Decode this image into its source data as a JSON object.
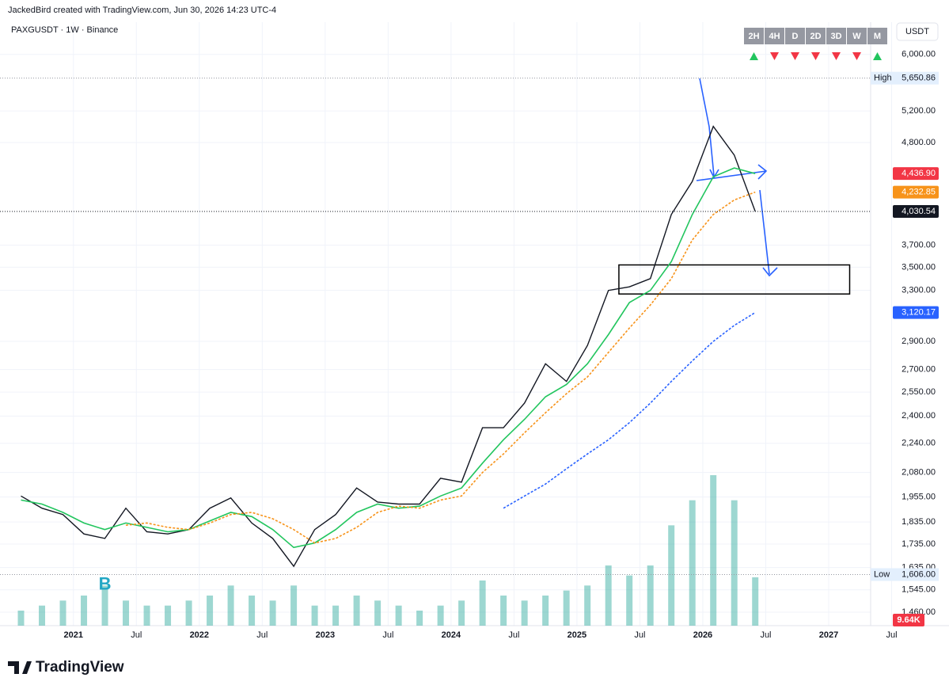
{
  "header": "JackedBird created with TradingView.com, Jun 30, 2026 14:23 UTC-4",
  "footer": "TradingView",
  "chart_data": {
    "type": "line",
    "symbol": "PAXGUSDT · 1W · Binance",
    "currency": "USDT",
    "log_scale": true,
    "x": [
      "2020-08",
      "2020-10",
      "2020-12",
      "2021-02",
      "2021-04",
      "2021-06",
      "2021-08",
      "2021-10",
      "2021-12",
      "2022-02",
      "2022-04",
      "2022-06",
      "2022-08",
      "2022-10",
      "2022-12",
      "2023-02",
      "2023-04",
      "2023-06",
      "2023-08",
      "2023-10",
      "2023-12",
      "2024-02",
      "2024-04",
      "2024-06",
      "2024-08",
      "2024-10",
      "2024-12",
      "2025-02",
      "2025-04",
      "2025-06",
      "2025-08",
      "2025-10",
      "2025-12",
      "2026-02",
      "2026-04",
      "2026-06"
    ],
    "series": [
      {
        "color": "#131722",
        "values": [
          1960,
          1900,
          1870,
          1780,
          1760,
          1900,
          1790,
          1780,
          1800,
          1900,
          1950,
          1830,
          1760,
          1640,
          1800,
          1870,
          2000,
          1930,
          1920,
          1920,
          2050,
          2030,
          2330,
          2330,
          2480,
          2740,
          2620,
          2870,
          3300,
          3330,
          3400,
          4000,
          4350,
          5000,
          4650,
          4030.54
        ]
      },
      {
        "color": "#22c55e",
        "values": [
          1940,
          1920,
          1880,
          1830,
          1800,
          1830,
          1810,
          1790,
          1800,
          1840,
          1880,
          1860,
          1800,
          1720,
          1740,
          1800,
          1880,
          1920,
          1900,
          1910,
          1960,
          2000,
          2130,
          2260,
          2380,
          2520,
          2600,
          2740,
          2950,
          3200,
          3300,
          3550,
          4000,
          4400,
          4500,
          4436.9
        ]
      },
      {
        "color": "#f7931a",
        "dashed": true,
        "values": [
          null,
          null,
          null,
          null,
          null,
          1820,
          1830,
          1810,
          1800,
          1830,
          1870,
          1880,
          1850,
          1800,
          1740,
          1760,
          1810,
          1880,
          1910,
          1900,
          1940,
          1960,
          2080,
          2180,
          2300,
          2420,
          2540,
          2650,
          2820,
          3000,
          3180,
          3400,
          3750,
          4000,
          4150,
          4232.85
        ]
      },
      {
        "color": "#2962ff",
        "dashed": true,
        "values": [
          null,
          null,
          null,
          null,
          null,
          null,
          null,
          null,
          null,
          null,
          null,
          null,
          null,
          null,
          null,
          null,
          null,
          null,
          null,
          null,
          null,
          null,
          null,
          1900,
          1960,
          2020,
          2100,
          2180,
          2260,
          2360,
          2480,
          2620,
          2760,
          2900,
          3020,
          3120.17
        ]
      }
    ],
    "volume": {
      "color": "#26a69a",
      "values": [
        3,
        4,
        5,
        6,
        8,
        5,
        4,
        4,
        5,
        6,
        8,
        6,
        5,
        8,
        4,
        4,
        6,
        5,
        4,
        3,
        4,
        5,
        9,
        6,
        5,
        6,
        7,
        8,
        12,
        10,
        12,
        20,
        25,
        30,
        25,
        9.64
      ],
      "label": "9.64K"
    },
    "xlim": [
      "2020-06",
      "2027-05"
    ],
    "xticks": [
      {
        "value": "2021-01",
        "label": "2021"
      },
      {
        "value": "2021-07",
        "label": "Jul"
      },
      {
        "value": "2022-01",
        "label": "2022"
      },
      {
        "value": "2022-07",
        "label": "Jul"
      },
      {
        "value": "2023-01",
        "label": "2023"
      },
      {
        "value": "2023-07",
        "label": "Jul"
      },
      {
        "value": "2024-01",
        "label": "2024"
      },
      {
        "value": "2024-07",
        "label": "Jul"
      },
      {
        "value": "2025-01",
        "label": "2025"
      },
      {
        "value": "2025-07",
        "label": "Jul"
      },
      {
        "value": "2026-01",
        "label": "2026"
      },
      {
        "value": "2026-07",
        "label": "Jul"
      },
      {
        "value": "2027-01",
        "label": "2027"
      },
      {
        "value": "2027-07",
        "label": "Jul"
      }
    ],
    "ylim": [
      1411,
      6512
    ],
    "yticks": [
      {
        "value": 6000,
        "label": "6,000.00"
      },
      {
        "value": 5200,
        "label": "5,200.00"
      },
      {
        "value": 4800,
        "label": "4,800.00"
      },
      {
        "value": 3700,
        "label": "3,700.00"
      },
      {
        "value": 3500,
        "label": "3,500.00"
      },
      {
        "value": 3300,
        "label": "3,300.00"
      },
      {
        "value": 2900,
        "label": "2,900.00"
      },
      {
        "value": 2700,
        "label": "2,700.00"
      },
      {
        "value": 2550,
        "label": "2,550.00"
      },
      {
        "value": 2400,
        "label": "2,400.00"
      },
      {
        "value": 2240,
        "label": "2,240.00"
      },
      {
        "value": 2080,
        "label": "2,080.00"
      },
      {
        "value": 1955,
        "label": "1,955.00"
      },
      {
        "value": 1835,
        "label": "1,835.00"
      },
      {
        "value": 1735,
        "label": "1,735.00"
      },
      {
        "value": 1635,
        "label": "1,635.00"
      },
      {
        "value": 1545,
        "label": "1,545.00"
      },
      {
        "value": 1460,
        "label": "1,460.00"
      }
    ],
    "grid": true,
    "markers": [
      {
        "name": "High",
        "value": 5650.86,
        "label": "5,650.86"
      },
      {
        "name": "Low",
        "value": 1606,
        "label": "1,606.00"
      }
    ],
    "last_labels": [
      {
        "value": 4436.9,
        "label": "4,436.90",
        "color": "#f23645"
      },
      {
        "value": 4232.85,
        "label": "4,232.85",
        "color": "#f7931a"
      },
      {
        "value": 4030.54,
        "label": "4,030.54",
        "color": "#131722"
      },
      {
        "value": 3120.17,
        "label": "3,120.17",
        "color": "#2962ff"
      }
    ],
    "zone": {
      "x": [
        "2025-05",
        "2027-03"
      ],
      "y": [
        3270,
        3520
      ]
    },
    "annotation": {
      "text": "B",
      "x": "2021-04",
      "y": 1590,
      "color": "#22a7c4"
    },
    "intervals": [
      {
        "label": "2H",
        "dir": "up"
      },
      {
        "label": "4H",
        "dir": "down"
      },
      {
        "label": "D",
        "dir": "down"
      },
      {
        "label": "2D",
        "dir": "down"
      },
      {
        "label": "3D",
        "dir": "down"
      },
      {
        "label": "W",
        "dir": "down"
      },
      {
        "label": "M",
        "dir": "up"
      }
    ]
  }
}
